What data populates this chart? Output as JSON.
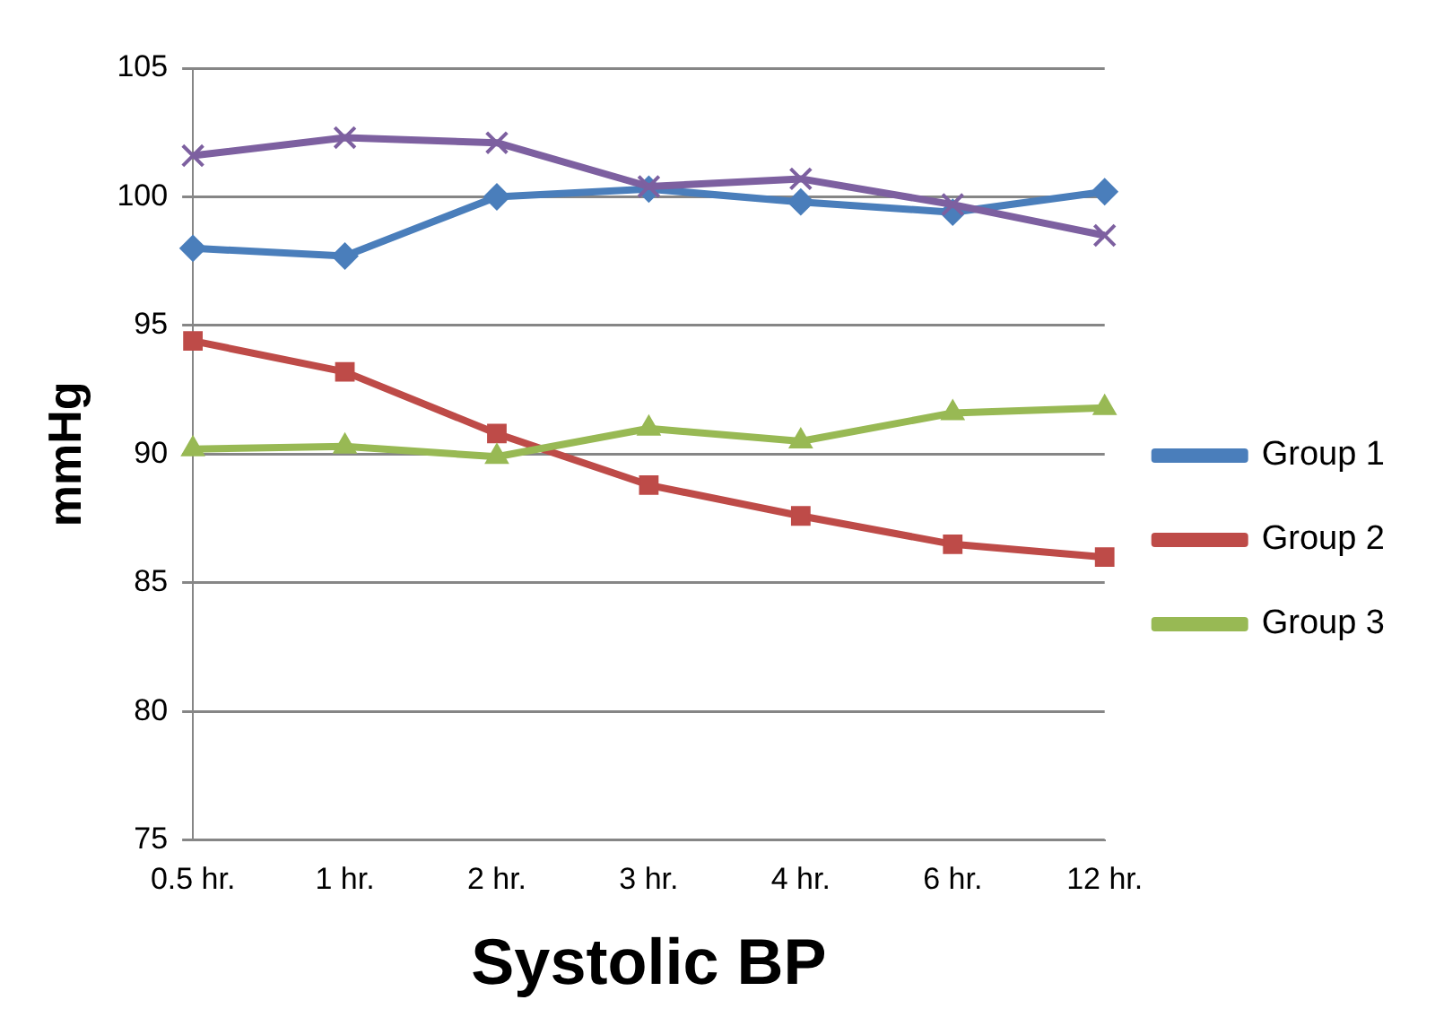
{
  "chart_data": {
    "type": "line",
    "xlabel": "Systolic BP",
    "ylabel": "mmHg",
    "categories": [
      "0.5 hr.",
      "1 hr.",
      "2 hr.",
      "3 hr.",
      "4 hr.",
      "6 hr.",
      "12 hr."
    ],
    "series": [
      {
        "name": "Group 1",
        "color": "#4a7ebb",
        "marker": "diamond",
        "values": [
          98.0,
          97.7,
          100.0,
          100.3,
          99.8,
          99.4,
          100.2
        ]
      },
      {
        "name": "Group 2",
        "color": "#be4b48",
        "marker": "square",
        "values": [
          94.4,
          93.2,
          90.8,
          88.8,
          87.6,
          86.5,
          86.0
        ]
      },
      {
        "name": "Group 3",
        "color": "#98b954",
        "marker": "triangle",
        "values": [
          90.2,
          90.3,
          89.9,
          91.0,
          90.5,
          91.6,
          91.8
        ]
      },
      {
        "color": "#7d60a0",
        "marker": "cross",
        "values": [
          101.6,
          102.3,
          102.1,
          100.4,
          100.7,
          99.7,
          98.5
        ]
      }
    ],
    "ylim": [
      75,
      105
    ],
    "yticks": [
      75,
      80,
      85,
      90,
      95,
      100,
      105
    ],
    "grid": "y",
    "legend": "right"
  }
}
